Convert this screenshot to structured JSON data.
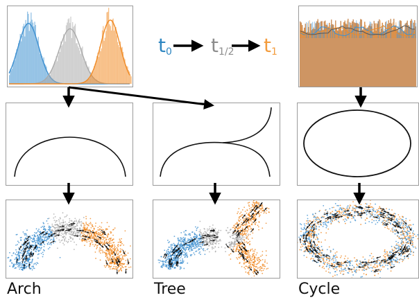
{
  "legend": {
    "t0": {
      "base": "t",
      "sub": "0",
      "color": "#2e86c1"
    },
    "thalf": {
      "base": "t",
      "sub": "1/2",
      "color": "#8c8c8c"
    },
    "t1": {
      "base": "t",
      "sub": "1",
      "color": "#f39c3d"
    }
  },
  "captions": {
    "arch": "Arch",
    "tree": "Tree",
    "cycle": "Cycle"
  },
  "colors": {
    "blue": "#3c8fd0",
    "gray": "#a9a9a9",
    "orange": "#f08a24",
    "arrow": "#000000"
  }
}
